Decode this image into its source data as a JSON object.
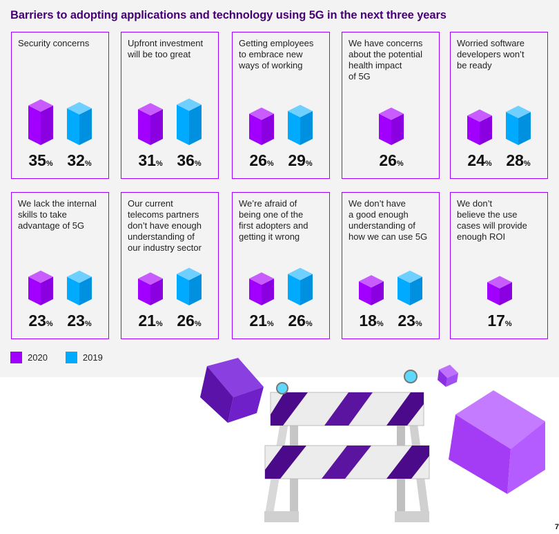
{
  "title": "Barriers to adopting applications and technology using 5G in the next three years",
  "legend": [
    {
      "label": "2020",
      "color": "#a100ff"
    },
    {
      "label": "2019",
      "color": "#00aaff"
    }
  ],
  "page_number": "7",
  "chart_data": {
    "type": "bar",
    "title": "Barriers to adopting applications and technology using 5G in the next three years",
    "unit": "%",
    "series_names": [
      "2020",
      "2019"
    ],
    "categories": [
      {
        "label": "Security concerns",
        "v2020": 35,
        "v2019": 32
      },
      {
        "label": "Upfront investment\nwill be too great",
        "v2020": 31,
        "v2019": 36
      },
      {
        "label": "Getting employees\nto embrace new\nways of working",
        "v2020": 26,
        "v2019": 29
      },
      {
        "label": "We have concerns\nabout the potential\nhealth impact\nof 5G",
        "v2020": 26,
        "v2019": null
      },
      {
        "label": "Worried software\ndevelopers won’t\nbe ready",
        "v2020": 24,
        "v2019": 28
      },
      {
        "label": "We lack the internal\nskills to take\nadvantage of 5G",
        "v2020": 23,
        "v2019": 23
      },
      {
        "label": "Our current\ntelecoms partners\ndon’t have enough\nunderstanding of\nour industry sector",
        "v2020": 21,
        "v2019": 26
      },
      {
        "label": "We’re afraid of\nbeing one of the\nfirst adopters and\ngetting it wrong",
        "v2020": 21,
        "v2019": 26
      },
      {
        "label": "We don’t have\na good enough\nunderstanding of\nhow we can use 5G",
        "v2020": 18,
        "v2019": 23
      },
      {
        "label": "We don’t\nbelieve the use\ncases will provide\nenough ROI",
        "v2020": 17,
        "v2019": null
      }
    ]
  }
}
